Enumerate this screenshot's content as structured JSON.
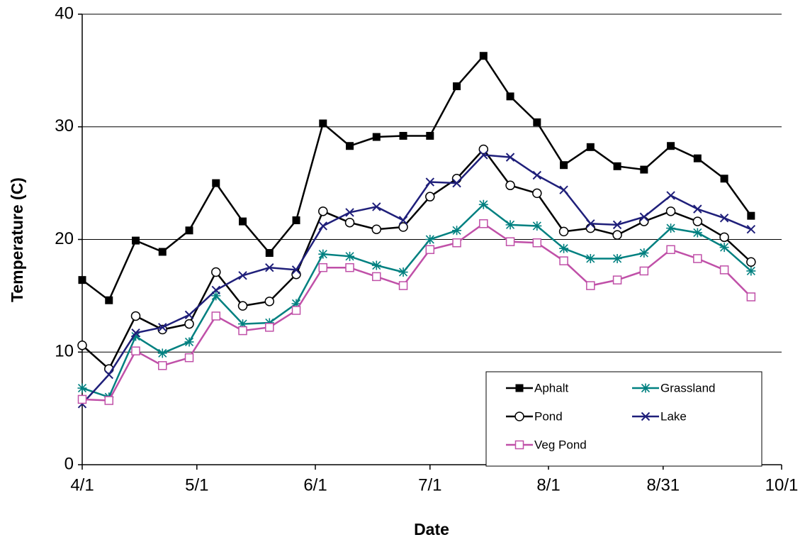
{
  "chart_data": {
    "type": "line",
    "xlabel": "Date",
    "ylabel": "Temperature (C)",
    "x": [
      "4/1",
      "4/8",
      "4/15",
      "4/22",
      "4/29",
      "5/6",
      "5/13",
      "5/20",
      "5/27",
      "6/3",
      "6/10",
      "6/17",
      "6/24",
      "7/1",
      "7/8",
      "7/15",
      "7/22",
      "7/29",
      "8/5",
      "8/12",
      "8/19",
      "8/26",
      "9/2",
      "9/9",
      "9/16",
      "9/23"
    ],
    "xlim": [
      "4/1",
      "10/1"
    ],
    "xticks": [
      "4/1",
      "5/1",
      "6/1",
      "7/1",
      "8/1",
      "8/31",
      "10/1"
    ],
    "ylim": [
      0,
      40
    ],
    "yticks": [
      0,
      10,
      20,
      30,
      40
    ],
    "grid": true,
    "series": [
      {
        "name": "Aphalt",
        "color": "#000000",
        "marker": "square-filled",
        "values": [
          16.4,
          14.6,
          19.9,
          18.9,
          20.8,
          25.0,
          21.6,
          18.8,
          21.7,
          30.3,
          28.3,
          29.1,
          29.2,
          29.2,
          33.6,
          36.3,
          32.7,
          30.4,
          26.6,
          28.2,
          26.5,
          26.2,
          28.3,
          27.2,
          25.4,
          22.1
        ]
      },
      {
        "name": "Grassland",
        "color": "#008080",
        "marker": "asterisk",
        "values": [
          6.8,
          6.0,
          11.4,
          9.9,
          10.9,
          15.0,
          12.5,
          12.6,
          14.3,
          18.7,
          18.5,
          17.7,
          17.1,
          20.0,
          20.8,
          23.1,
          21.3,
          21.2,
          19.2,
          18.3,
          18.3,
          18.8,
          21.0,
          20.6,
          19.3,
          17.2
        ]
      },
      {
        "name": "Pond",
        "color": "#000000",
        "marker": "circle-open",
        "values": [
          10.6,
          8.5,
          13.2,
          12.0,
          12.5,
          17.1,
          14.1,
          14.5,
          16.9,
          22.5,
          21.5,
          20.9,
          21.1,
          23.8,
          25.4,
          28.0,
          24.8,
          24.1,
          20.7,
          21.0,
          20.4,
          21.6,
          22.5,
          21.6,
          20.2,
          18.0
        ]
      },
      {
        "name": "Lake",
        "color": "#1f1f7a",
        "marker": "cross",
        "values": [
          5.4,
          8.0,
          11.7,
          12.2,
          13.3,
          15.5,
          16.8,
          17.5,
          17.3,
          21.2,
          22.4,
          22.9,
          21.7,
          25.1,
          25.0,
          27.5,
          27.3,
          25.7,
          24.4,
          21.4,
          21.3,
          22.0,
          23.9,
          22.7,
          21.9,
          20.9
        ]
      },
      {
        "name": "Veg Pond",
        "color": "#c050a8",
        "marker": "square-open",
        "values": [
          5.8,
          5.7,
          10.1,
          8.8,
          9.5,
          13.2,
          11.9,
          12.2,
          13.7,
          17.5,
          17.5,
          16.7,
          15.9,
          19.1,
          19.7,
          21.4,
          19.8,
          19.7,
          18.1,
          15.9,
          16.4,
          17.2,
          19.1,
          18.3,
          17.3,
          14.9
        ]
      }
    ]
  }
}
